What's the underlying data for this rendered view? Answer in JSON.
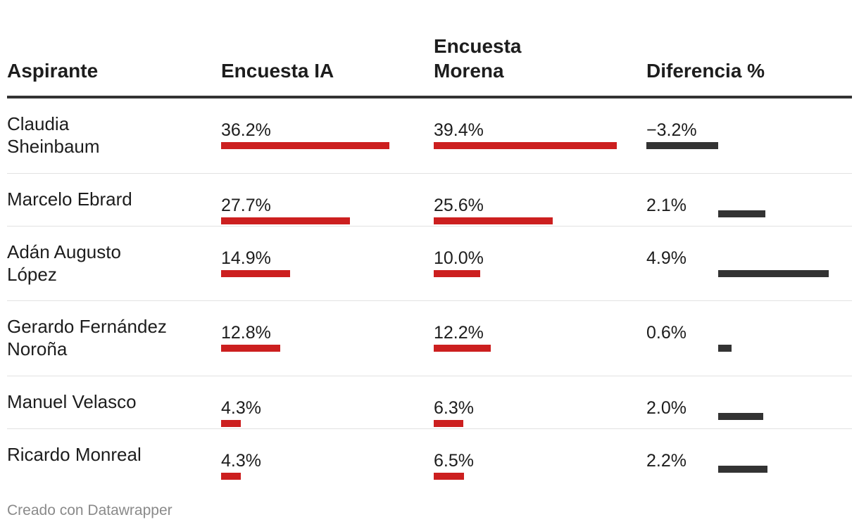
{
  "columns": [
    "Aspirante",
    "Encuesta IA",
    "Encuesta\nMorena",
    "Diferencia %"
  ],
  "colors": {
    "poll_bar": "#cc1f1f",
    "diff_bar": "#333333",
    "header_rule": "#333333",
    "footer_text": "#8a8a8a"
  },
  "rows": [
    {
      "name": "Claudia\nSheinbaum",
      "ia": "36.2%",
      "morena": "39.4%",
      "diff": "−3.2%"
    },
    {
      "name": "Marcelo Ebrard",
      "ia": "27.7%",
      "morena": "25.6%",
      "diff": "2.1%"
    },
    {
      "name": "Adán Augusto\nLópez",
      "ia": "14.9%",
      "morena": "10.0%",
      "diff": "4.9%"
    },
    {
      "name": "Gerardo Fernández\nNoroña",
      "ia": "12.8%",
      "morena": "12.2%",
      "diff": "0.6%"
    },
    {
      "name": "Manuel Velasco",
      "ia": "4.3%",
      "morena": "6.3%",
      "diff": "2.0%"
    },
    {
      "name": "Ricardo Monreal",
      "ia": "4.3%",
      "morena": "6.5%",
      "diff": "2.2%"
    }
  ],
  "chart_data": {
    "type": "table",
    "categories": [
      "Claudia Sheinbaum",
      "Marcelo Ebrard",
      "Adán Augusto López",
      "Gerardo Fernández Noroña",
      "Manuel Velasco",
      "Ricardo Monreal"
    ],
    "series": [
      {
        "name": "Encuesta IA",
        "values": [
          36.2,
          27.7,
          14.9,
          12.8,
          4.3,
          4.3
        ]
      },
      {
        "name": "Encuesta Morena",
        "values": [
          39.4,
          25.6,
          10.0,
          12.2,
          6.3,
          6.5
        ]
      },
      {
        "name": "Diferencia %",
        "values": [
          -3.2,
          2.1,
          4.9,
          0.6,
          2.0,
          2.2
        ]
      }
    ]
  },
  "footer": "Creado con Datawrapper"
}
